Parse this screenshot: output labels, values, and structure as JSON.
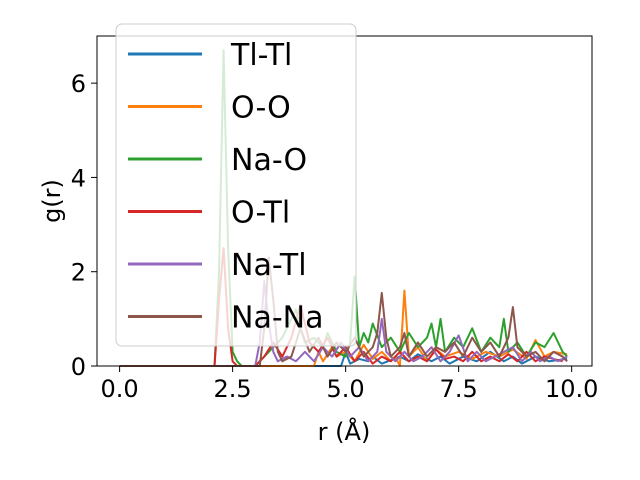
{
  "chart_data": {
    "type": "line",
    "xlabel": "r (Å)",
    "ylabel": "g(r)",
    "xlim": [
      -0.5,
      10.45
    ],
    "ylim": [
      0,
      7.0
    ],
    "x_ticks": [
      0.0,
      2.5,
      5.0,
      7.5,
      10.0
    ],
    "x_tick_labels": [
      "0.0",
      "2.5",
      "5.0",
      "7.5",
      "10.0"
    ],
    "y_ticks": [
      0,
      2,
      4,
      6
    ],
    "y_tick_labels": [
      "0",
      "2",
      "4",
      "6"
    ],
    "legend_position": "top-left",
    "grid": false,
    "series": [
      {
        "name": "Tl-Tl",
        "color": "#1f77b4",
        "x": [
          0,
          4.9,
          5.0,
          5.1,
          5.3,
          5.5,
          5.6,
          5.8,
          6.2,
          6.4,
          6.6,
          6.9,
          7.1,
          7.3,
          7.6,
          7.9,
          8.2,
          8.5,
          8.7,
          8.9,
          9.2,
          9.5,
          9.9
        ],
        "y": [
          0,
          0,
          0.3,
          0.05,
          0.15,
          0.1,
          0.2,
          0.05,
          0.2,
          0.1,
          0.25,
          0.1,
          0.2,
          0.05,
          0.2,
          0.1,
          0.3,
          0.1,
          0.2,
          0.05,
          0.2,
          0.1,
          0.15
        ]
      },
      {
        "name": "O-O",
        "color": "#ff7f0e",
        "x": [
          0,
          4.3,
          4.4,
          4.5,
          4.7,
          4.8,
          5.0,
          5.2,
          5.4,
          5.6,
          5.8,
          6.0,
          6.1,
          6.2,
          6.3,
          6.4,
          6.6,
          6.8,
          7.0,
          7.2,
          7.5,
          7.8,
          8.1,
          8.4,
          8.7,
          9.0,
          9.2,
          9.4,
          9.6,
          9.9
        ],
        "y": [
          0,
          0,
          0.3,
          0.1,
          0.4,
          0.2,
          0.3,
          0.1,
          0.45,
          0.15,
          0.3,
          0.1,
          0.2,
          0.0,
          1.6,
          0.2,
          0.4,
          0.1,
          0.35,
          0.2,
          0.3,
          0.15,
          0.3,
          0.2,
          0.35,
          0.15,
          0.55,
          0.2,
          0.3,
          0.25
        ]
      },
      {
        "name": "Na-O",
        "color": "#2ca02c",
        "x": [
          0,
          2.1,
          2.2,
          2.3,
          2.4,
          2.5,
          2.6,
          2.7,
          3.0,
          3.3,
          3.6,
          3.9,
          4.0,
          4.1,
          4.3,
          4.5,
          4.6,
          4.8,
          5.0,
          5.1,
          5.2,
          5.3,
          5.4,
          5.5,
          5.6,
          5.8,
          6.0,
          6.2,
          6.4,
          6.6,
          6.8,
          6.9,
          7.0,
          7.1,
          7.2,
          7.4,
          7.6,
          7.8,
          8.0,
          8.2,
          8.4,
          8.5,
          8.6,
          8.8,
          9.0,
          9.2,
          9.4,
          9.6,
          9.8,
          9.9
        ],
        "y": [
          0,
          0,
          2.0,
          6.7,
          2.5,
          0.3,
          0.1,
          0.0,
          0.0,
          0.3,
          0.6,
          1.2,
          0.8,
          0.5,
          0.6,
          0.4,
          0.7,
          0.3,
          0.2,
          0.5,
          1.9,
          0.4,
          0.7,
          0.5,
          0.9,
          0.4,
          0.6,
          0.3,
          0.7,
          0.4,
          0.6,
          0.9,
          0.4,
          1.0,
          0.3,
          0.6,
          0.4,
          0.8,
          0.3,
          0.6,
          0.4,
          1.0,
          0.3,
          0.5,
          0.2,
          0.5,
          0.4,
          0.7,
          0.3,
          0.2
        ]
      },
      {
        "name": "O-Tl",
        "color": "#d62728",
        "x": [
          0,
          2.1,
          2.2,
          2.3,
          2.4,
          2.5,
          2.6,
          2.8,
          3.0,
          3.2,
          3.4,
          3.6,
          3.8,
          4.0,
          4.2,
          4.4,
          4.6,
          4.8,
          5.0,
          5.2,
          5.4,
          5.6,
          5.8,
          6.0,
          6.2,
          6.4,
          6.6,
          6.8,
          7.0,
          7.2,
          7.4,
          7.6,
          7.8,
          8.0,
          8.2,
          8.4,
          8.6,
          8.8,
          9.0,
          9.2,
          9.4,
          9.6,
          9.8
        ],
        "y": [
          0,
          0,
          1.4,
          2.5,
          0.8,
          0.1,
          0.0,
          0.0,
          0.0,
          0.2,
          0.5,
          0.2,
          0.6,
          1.3,
          0.5,
          0.3,
          0.6,
          0.2,
          0.4,
          0.1,
          0.3,
          0.05,
          0.2,
          0.1,
          0.3,
          0.1,
          0.2,
          0.1,
          0.35,
          0.15,
          0.2,
          0.1,
          0.3,
          0.1,
          0.2,
          0.1,
          0.25,
          0.1,
          0.3,
          0.1,
          0.2,
          0.15,
          0.1
        ]
      },
      {
        "name": "Na-Tl",
        "color": "#9467bd",
        "x": [
          0,
          3.0,
          3.1,
          3.2,
          3.3,
          3.4,
          3.5,
          3.7,
          3.9,
          4.1,
          4.3,
          4.5,
          4.7,
          4.9,
          5.1,
          5.3,
          5.5,
          5.7,
          5.8,
          5.9,
          6.1,
          6.3,
          6.5,
          6.7,
          6.9,
          7.1,
          7.3,
          7.5,
          7.7,
          7.9,
          8.1,
          8.3,
          8.5,
          8.7,
          8.9,
          9.1,
          9.3,
          9.5,
          9.7,
          9.9
        ],
        "y": [
          0,
          0,
          0.5,
          1.8,
          0.9,
          0.3,
          0.1,
          0.2,
          0.1,
          0.3,
          0.1,
          0.4,
          0.2,
          0.5,
          0.2,
          0.4,
          0.1,
          0.3,
          1.0,
          0.3,
          0.1,
          0.3,
          0.1,
          0.2,
          0.4,
          0.1,
          0.3,
          0.65,
          0.1,
          0.3,
          0.1,
          0.2,
          0.3,
          0.4,
          0.1,
          0.3,
          0.1,
          0.2,
          0.1,
          0.2
        ]
      },
      {
        "name": "Na-Na",
        "color": "#8c564b",
        "x": [
          0,
          3.1,
          3.2,
          3.3,
          3.4,
          3.5,
          3.6,
          3.8,
          4.0,
          4.2,
          4.4,
          4.6,
          4.8,
          5.0,
          5.2,
          5.4,
          5.6,
          5.7,
          5.8,
          5.9,
          6.0,
          6.2,
          6.3,
          6.4,
          6.6,
          6.8,
          7.0,
          7.2,
          7.4,
          7.6,
          7.8,
          8.0,
          8.2,
          8.4,
          8.6,
          8.7,
          8.8,
          9.0,
          9.2,
          9.4,
          9.6,
          9.8,
          9.9
        ],
        "y": [
          0,
          0,
          0.8,
          2.3,
          1.4,
          0.3,
          0.1,
          0.2,
          0.8,
          0.3,
          0.6,
          0.2,
          0.5,
          0.3,
          0.6,
          0.2,
          0.4,
          0.7,
          1.55,
          0.6,
          0.2,
          0.4,
          0.7,
          0.2,
          0.5,
          0.2,
          0.4,
          0.3,
          0.5,
          0.2,
          0.6,
          0.3,
          0.5,
          0.2,
          0.6,
          1.25,
          0.4,
          0.2,
          0.3,
          0.1,
          0.3,
          0.2,
          0.1
        ]
      }
    ]
  }
}
